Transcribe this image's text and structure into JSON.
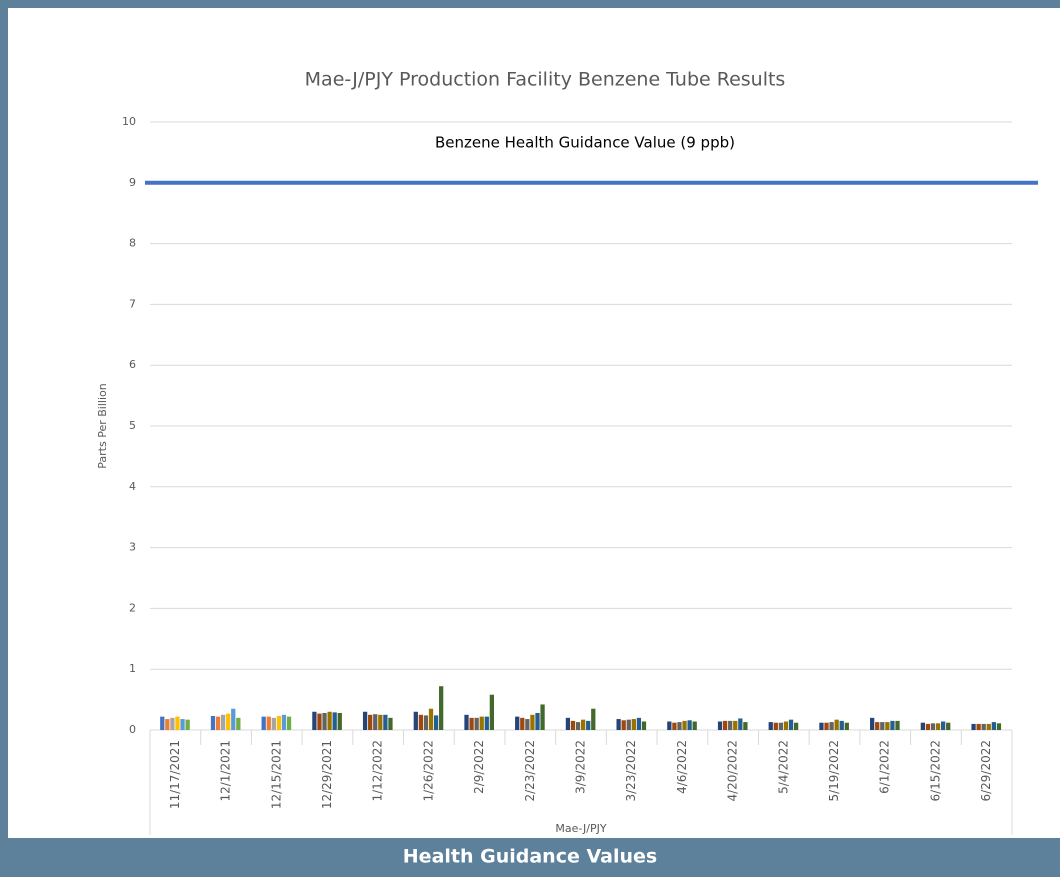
{
  "chart_data": {
    "type": "bar",
    "title": "Mae-J/PJY Production Facility Benzene Tube Results",
    "y_label": "Parts Per Billion",
    "x_label": "Mae-J/PJY",
    "annotation": "Benzene Health Guidance Value (9 ppb)",
    "guidance_value": 9,
    "guidance_color": "#4472c4",
    "footer": "Health Guidance Values",
    "categories": [
      "11/17/2021",
      "12/1/2021",
      "12/15/2021",
      "12/29/2021",
      "1/12/2022",
      "1/26/2022",
      "2/9/2022",
      "2/23/2022",
      "3/9/2022",
      "3/23/2022",
      "4/6/2022",
      "4/20/2022",
      "5/4/2022",
      "5/19/2022",
      "6/1/2022",
      "6/15/2022",
      "6/29/2022"
    ],
    "series": [
      {
        "color": "#4472c4",
        "values": [
          0.22,
          0.23,
          0.22,
          null,
          null,
          null,
          null,
          null,
          null,
          null,
          null,
          null,
          null,
          null,
          null,
          null,
          null
        ]
      },
      {
        "color": "#ed7d31",
        "values": [
          0.18,
          0.22,
          0.22,
          null,
          null,
          null,
          null,
          null,
          null,
          null,
          null,
          null,
          null,
          null,
          null,
          null,
          null
        ]
      },
      {
        "color": "#a5a5a5",
        "values": [
          0.2,
          0.25,
          0.2,
          null,
          null,
          null,
          null,
          null,
          null,
          null,
          null,
          null,
          null,
          null,
          null,
          null,
          null
        ]
      },
      {
        "color": "#ffc000",
        "values": [
          0.22,
          0.27,
          0.23,
          null,
          null,
          null,
          null,
          null,
          null,
          null,
          null,
          null,
          null,
          null,
          null,
          null,
          null
        ]
      },
      {
        "color": "#5b9bd5",
        "values": [
          0.18,
          0.35,
          0.25,
          null,
          null,
          null,
          null,
          null,
          null,
          null,
          null,
          null,
          null,
          null,
          null,
          null,
          null
        ]
      },
      {
        "color": "#70ad47",
        "values": [
          0.17,
          0.2,
          0.22,
          null,
          null,
          null,
          null,
          null,
          null,
          null,
          null,
          null,
          null,
          null,
          null,
          null,
          null
        ]
      },
      {
        "color": "#264478",
        "values": [
          null,
          null,
          null,
          0.3,
          0.3,
          0.3,
          0.25,
          0.22,
          0.2,
          0.18,
          0.14,
          0.14,
          0.13,
          0.12,
          0.2,
          0.12,
          0.1
        ]
      },
      {
        "color": "#9e480e",
        "values": [
          null,
          null,
          null,
          0.27,
          0.25,
          0.25,
          0.2,
          0.2,
          0.15,
          0.16,
          0.12,
          0.15,
          0.12,
          0.12,
          0.13,
          0.1,
          0.1
        ]
      },
      {
        "color": "#636363",
        "values": [
          null,
          null,
          null,
          0.28,
          0.26,
          0.24,
          0.2,
          0.18,
          0.13,
          0.17,
          0.13,
          0.15,
          0.12,
          0.13,
          0.13,
          0.11,
          0.1
        ]
      },
      {
        "color": "#997300",
        "values": [
          null,
          null,
          null,
          0.3,
          0.25,
          0.35,
          0.22,
          0.25,
          0.17,
          0.18,
          0.15,
          0.15,
          0.14,
          0.17,
          0.13,
          0.11,
          0.1
        ]
      },
      {
        "color": "#255e91",
        "values": [
          null,
          null,
          null,
          0.29,
          0.25,
          0.24,
          0.22,
          0.28,
          0.15,
          0.2,
          0.16,
          0.19,
          0.17,
          0.15,
          0.15,
          0.14,
          0.13
        ]
      },
      {
        "color": "#43682b",
        "values": [
          null,
          null,
          null,
          0.28,
          0.2,
          0.72,
          0.58,
          0.42,
          0.35,
          0.14,
          0.14,
          0.13,
          0.12,
          0.12,
          0.15,
          0.12,
          0.11
        ]
      }
    ],
    "ylim": [
      0,
      10
    ],
    "yticks": [
      0,
      1,
      2,
      3,
      4,
      5,
      6,
      7,
      8,
      9,
      10
    ],
    "grid": true
  }
}
